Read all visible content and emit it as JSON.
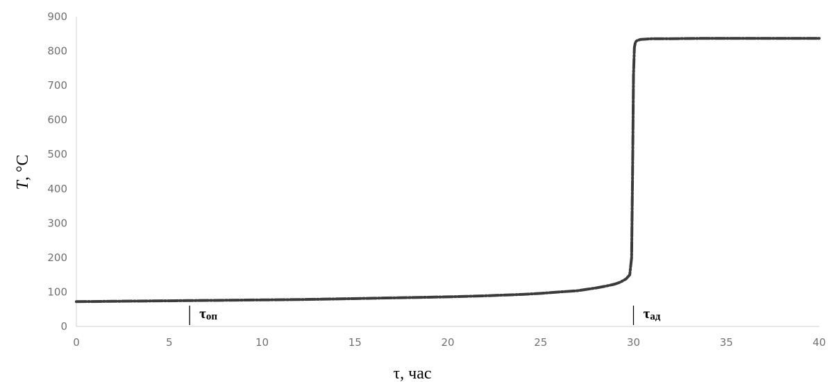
{
  "chart_data": {
    "type": "line",
    "title": "",
    "xlabel": "τ, час",
    "ylabel_italic": "T",
    "ylabel_rest": ", °C",
    "xlim": [
      0,
      40
    ],
    "ylim": [
      0,
      900
    ],
    "x_ticks": [
      "0",
      "5",
      "10",
      "15",
      "20",
      "25",
      "30",
      "35",
      "40"
    ],
    "y_ticks": [
      "0",
      "100",
      "200",
      "300",
      "400",
      "500",
      "600",
      "700",
      "800",
      "900"
    ],
    "grid": false,
    "legend": "none",
    "line_color": "#3a3a3a",
    "series": [
      {
        "x": [
          0,
          2,
          4,
          6,
          8,
          10,
          12,
          14,
          16,
          18,
          20,
          22,
          24,
          25,
          26,
          27,
          27.5,
          28,
          28.5,
          29,
          29.3,
          29.6,
          29.8,
          29.9,
          29.95,
          30,
          30.05,
          30.1,
          30.2,
          30.4,
          30.7,
          31,
          32,
          34,
          36,
          38,
          40
        ],
        "y": [
          72,
          73,
          74,
          75,
          76,
          77,
          78,
          80,
          82,
          84,
          86,
          89,
          93,
          96,
          100,
          104,
          108,
          112,
          117,
          123,
          129,
          138,
          150,
          200,
          450,
          730,
          810,
          826,
          831,
          834,
          835,
          836,
          836,
          837,
          837,
          837,
          837
        ]
      }
    ],
    "annotations": [
      {
        "x": 6.1,
        "label_main": "τ",
        "label_sub": "оп"
      },
      {
        "x": 30.0,
        "label_main": "τ",
        "label_sub": "ад"
      }
    ]
  }
}
